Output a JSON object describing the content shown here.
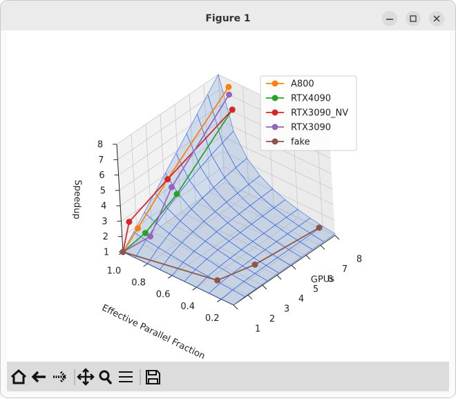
{
  "window": {
    "title": "Figure 1"
  },
  "chart_data": {
    "type": "line3d",
    "xlabel": "GPUs",
    "ylabel": "Effective Parallel Fraction",
    "zlabel": "Speedup",
    "xlim": [
      1,
      8
    ],
    "ylim": [
      0.1,
      1.0
    ],
    "zlim": [
      1,
      8
    ],
    "xticks": [
      1,
      2,
      3,
      4,
      5,
      6,
      7,
      8
    ],
    "yticks": [
      0.2,
      0.4,
      0.6,
      0.8,
      {
        "value": 1.0,
        "label": "1.0"
      }
    ],
    "zticks": [
      1,
      2,
      3,
      4,
      5,
      6,
      7,
      8
    ],
    "grid": true,
    "legend": "upper right",
    "surface": {
      "color": "#2f5fe0",
      "x": [
        1,
        1.78,
        2.56,
        3.33,
        4.11,
        4.89,
        5.67,
        6.44,
        7.22,
        8
      ],
      "y": [
        0.1,
        0.2,
        0.3,
        0.4,
        0.5,
        0.6,
        0.7,
        0.8,
        0.9,
        1.0
      ]
    },
    "series": [
      {
        "name": "A800",
        "color": "#ff7f0e",
        "x": [
          1,
          2,
          4,
          8
        ],
        "y": [
          1.0,
          0.99,
          0.97,
          0.92
        ],
        "z": [
          1,
          1.93,
          3.9,
          7.5
        ]
      },
      {
        "name": "RTX4090",
        "color": "#2ca02c",
        "x": [
          1,
          2,
          4,
          8
        ],
        "y": [
          1.0,
          0.93,
          0.9,
          0.9
        ],
        "z": [
          1,
          1.85,
          3.2,
          6.1
        ]
      },
      {
        "name": "RTX3090_NV",
        "color": "#d62728",
        "x": [
          1,
          2,
          4,
          8
        ],
        "y": [
          1.0,
          1.06,
          0.97,
          0.9
        ],
        "z": [
          1,
          2.08,
          3.9,
          6.1
        ]
      },
      {
        "name": "RTX3090",
        "color": "#9467bd",
        "x": [
          1,
          2,
          4,
          8
        ],
        "y": [
          1.0,
          0.89,
          0.94,
          0.92
        ],
        "z": [
          1,
          1.78,
          3.5,
          7.0
        ]
      },
      {
        "name": "fake",
        "color": "#8c564b",
        "x": [
          1,
          2,
          4,
          8
        ],
        "y": [
          1.0,
          0.35,
          0.28,
          0.23
        ],
        "z": [
          1,
          1,
          1,
          1
        ]
      }
    ]
  }
}
